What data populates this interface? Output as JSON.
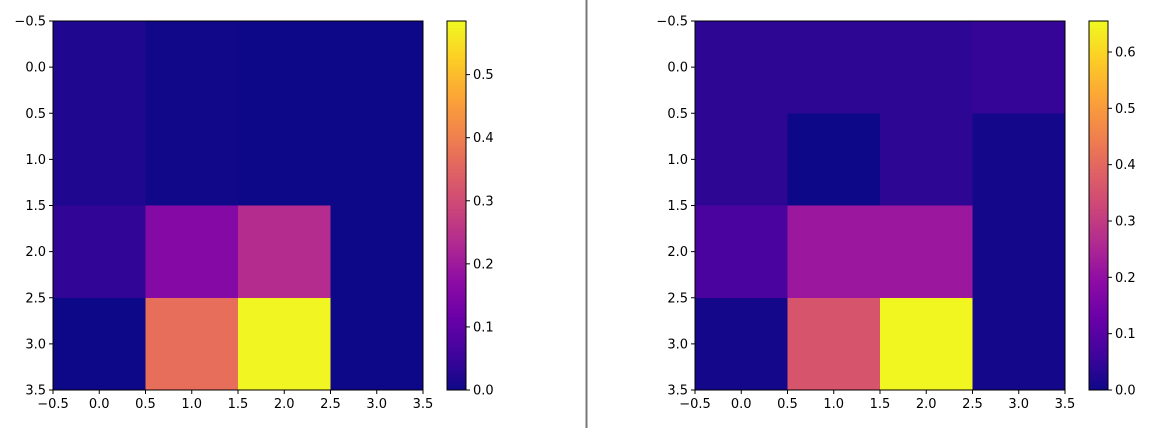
{
  "chart_data": [
    {
      "type": "heatmap",
      "colormap": "plasma",
      "x": [
        0,
        1,
        2,
        3
      ],
      "y": [
        0,
        1,
        2,
        3
      ],
      "xlim": [
        -0.5,
        3.5
      ],
      "ylim": [
        3.5,
        -0.5
      ],
      "values": [
        [
          0.02,
          0.005,
          0.0,
          0.0
        ],
        [
          0.02,
          0.005,
          0.0,
          0.0
        ],
        [
          0.04,
          0.16,
          0.24,
          0.0
        ],
        [
          0.0,
          0.37,
          0.58,
          0.0
        ]
      ],
      "colorbar": {
        "min": 0.0,
        "max": 0.585,
        "ticks": [
          0.0,
          0.1,
          0.2,
          0.3,
          0.4,
          0.5
        ],
        "tick_labels": [
          "0.0",
          "0.1",
          "0.2",
          "0.3",
          "0.4",
          "0.5"
        ]
      },
      "x_tick_labels": [
        "−0.5",
        "0.0",
        "0.5",
        "1.0",
        "1.5",
        "2.0",
        "2.5",
        "3.0",
        "3.5"
      ],
      "y_tick_labels": [
        "−0.5",
        "0.0",
        "0.5",
        "1.0",
        "1.5",
        "2.0",
        "2.5",
        "3.0",
        "3.5"
      ]
    },
    {
      "type": "heatmap",
      "colormap": "plasma",
      "x": [
        0,
        1,
        2,
        3
      ],
      "y": [
        0,
        1,
        2,
        3
      ],
      "xlim": [
        -0.5,
        3.5
      ],
      "ylim": [
        3.5,
        -0.5
      ],
      "values": [
        [
          0.04,
          0.04,
          0.04,
          0.05
        ],
        [
          0.04,
          0.0,
          0.04,
          0.01
        ],
        [
          0.08,
          0.22,
          0.22,
          0.01
        ],
        [
          0.01,
          0.36,
          0.65,
          0.01
        ]
      ],
      "colorbar": {
        "min": 0.0,
        "max": 0.655,
        "ticks": [
          0.0,
          0.1,
          0.2,
          0.3,
          0.4,
          0.5,
          0.6
        ],
        "tick_labels": [
          "0.0",
          "0.1",
          "0.2",
          "0.3",
          "0.4",
          "0.5",
          "0.6"
        ]
      },
      "x_tick_labels": [
        "−0.5",
        "0.0",
        "0.5",
        "1.0",
        "1.5",
        "2.0",
        "2.5",
        "3.0",
        "3.5"
      ],
      "y_tick_labels": [
        "−0.5",
        "0.0",
        "0.5",
        "1.0",
        "1.5",
        "2.0",
        "2.5",
        "3.0",
        "3.5"
      ]
    }
  ],
  "divider": {
    "color": "#777777"
  }
}
